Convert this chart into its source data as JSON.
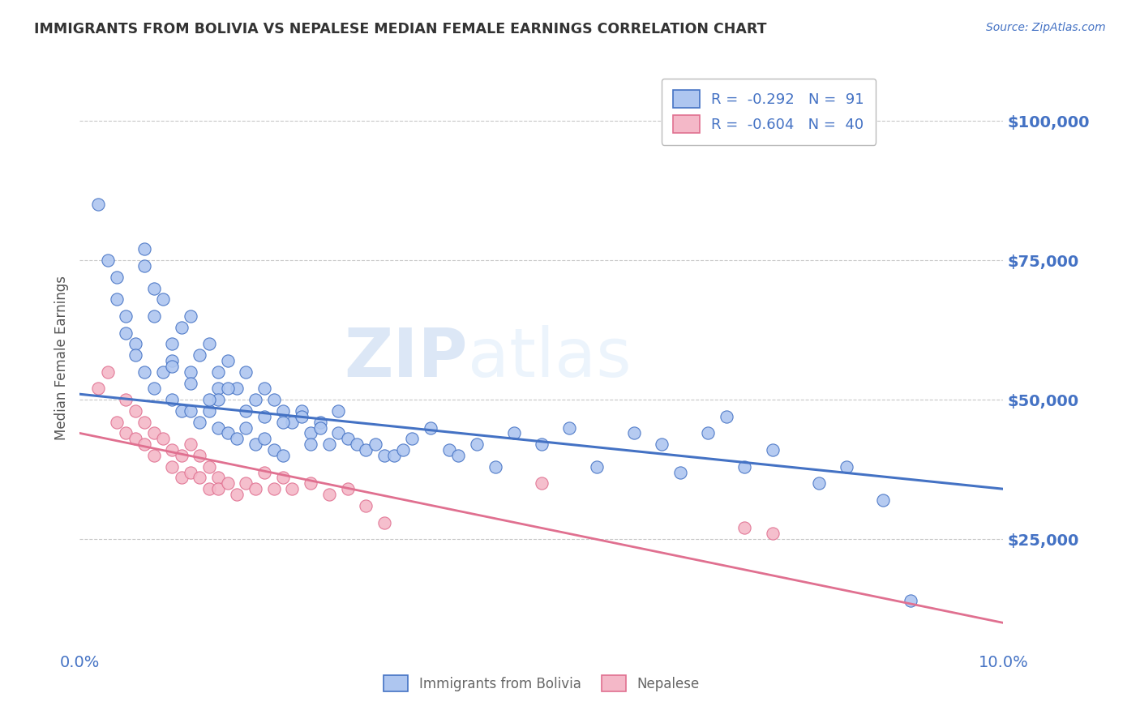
{
  "title": "IMMIGRANTS FROM BOLIVIA VS NEPALESE MEDIAN FEMALE EARNINGS CORRELATION CHART",
  "source": "Source: ZipAtlas.com",
  "ylabel": "Median Female Earnings",
  "xlim": [
    0.0,
    0.1
  ],
  "ylim": [
    5000,
    110000
  ],
  "yticks": [
    25000,
    50000,
    75000,
    100000
  ],
  "ytick_labels": [
    "$25,000",
    "$50,000",
    "$75,000",
    "$100,000"
  ],
  "xticks": [
    0.0,
    0.1
  ],
  "xtick_labels": [
    "0.0%",
    "10.0%"
  ],
  "background_color": "#ffffff",
  "grid_color": "#c8c8c8",
  "title_color": "#333333",
  "axis_label_color": "#555555",
  "blue_color": "#4472c4",
  "blue_light": "#aec6f0",
  "pink_color": "#e07090",
  "pink_light": "#f4b8c8",
  "source_color": "#4472c4",
  "tick_label_color": "#4472c4",
  "watermark_color": "#d8e8f8",
  "blue_trend_x0": 0.0,
  "blue_trend_x1": 0.1,
  "blue_trend_y0": 51000,
  "blue_trend_y1": 34000,
  "pink_trend_x0": 0.0,
  "pink_trend_x1": 0.1,
  "pink_trend_y0": 44000,
  "pink_trend_y1": 10000,
  "bolivia_scatter_x": [
    0.002,
    0.003,
    0.004,
    0.004,
    0.005,
    0.005,
    0.006,
    0.006,
    0.007,
    0.007,
    0.007,
    0.008,
    0.008,
    0.008,
    0.009,
    0.009,
    0.01,
    0.01,
    0.01,
    0.011,
    0.011,
    0.012,
    0.012,
    0.012,
    0.013,
    0.013,
    0.014,
    0.014,
    0.015,
    0.015,
    0.015,
    0.016,
    0.016,
    0.017,
    0.017,
    0.018,
    0.018,
    0.019,
    0.019,
    0.02,
    0.02,
    0.021,
    0.021,
    0.022,
    0.022,
    0.023,
    0.024,
    0.025,
    0.025,
    0.026,
    0.027,
    0.028,
    0.029,
    0.03,
    0.031,
    0.032,
    0.033,
    0.034,
    0.035,
    0.036,
    0.038,
    0.04,
    0.041,
    0.043,
    0.045,
    0.047,
    0.05,
    0.053,
    0.056,
    0.06,
    0.063,
    0.065,
    0.068,
    0.07,
    0.072,
    0.075,
    0.08,
    0.083,
    0.087,
    0.09,
    0.015,
    0.018,
    0.02,
    0.022,
    0.024,
    0.026,
    0.028,
    0.016,
    0.014,
    0.012,
    0.01
  ],
  "bolivia_scatter_y": [
    85000,
    75000,
    72000,
    68000,
    65000,
    62000,
    60000,
    58000,
    77000,
    74000,
    55000,
    70000,
    65000,
    52000,
    68000,
    55000,
    60000,
    57000,
    50000,
    63000,
    48000,
    65000,
    55000,
    48000,
    58000,
    46000,
    60000,
    48000,
    55000,
    52000,
    45000,
    57000,
    44000,
    52000,
    43000,
    55000,
    45000,
    50000,
    42000,
    52000,
    43000,
    50000,
    41000,
    48000,
    40000,
    46000,
    48000,
    44000,
    42000,
    46000,
    42000,
    44000,
    43000,
    42000,
    41000,
    42000,
    40000,
    40000,
    41000,
    43000,
    45000,
    41000,
    40000,
    42000,
    38000,
    44000,
    42000,
    45000,
    38000,
    44000,
    42000,
    37000,
    44000,
    47000,
    38000,
    41000,
    35000,
    38000,
    32000,
    14000,
    50000,
    48000,
    47000,
    46000,
    47000,
    45000,
    48000,
    52000,
    50000,
    53000,
    56000
  ],
  "nepal_scatter_x": [
    0.002,
    0.003,
    0.004,
    0.005,
    0.005,
    0.006,
    0.006,
    0.007,
    0.007,
    0.008,
    0.008,
    0.009,
    0.01,
    0.01,
    0.011,
    0.011,
    0.012,
    0.012,
    0.013,
    0.013,
    0.014,
    0.014,
    0.015,
    0.015,
    0.016,
    0.017,
    0.018,
    0.019,
    0.02,
    0.021,
    0.022,
    0.023,
    0.025,
    0.027,
    0.029,
    0.031,
    0.033,
    0.05,
    0.072,
    0.075
  ],
  "nepal_scatter_y": [
    52000,
    55000,
    46000,
    50000,
    44000,
    48000,
    43000,
    46000,
    42000,
    44000,
    40000,
    43000,
    41000,
    38000,
    40000,
    36000,
    42000,
    37000,
    40000,
    36000,
    38000,
    34000,
    36000,
    34000,
    35000,
    33000,
    35000,
    34000,
    37000,
    34000,
    36000,
    34000,
    35000,
    33000,
    34000,
    31000,
    28000,
    35000,
    27000,
    26000
  ],
  "bottom_legend_labels": [
    "Immigrants from Bolivia",
    "Nepalese"
  ]
}
